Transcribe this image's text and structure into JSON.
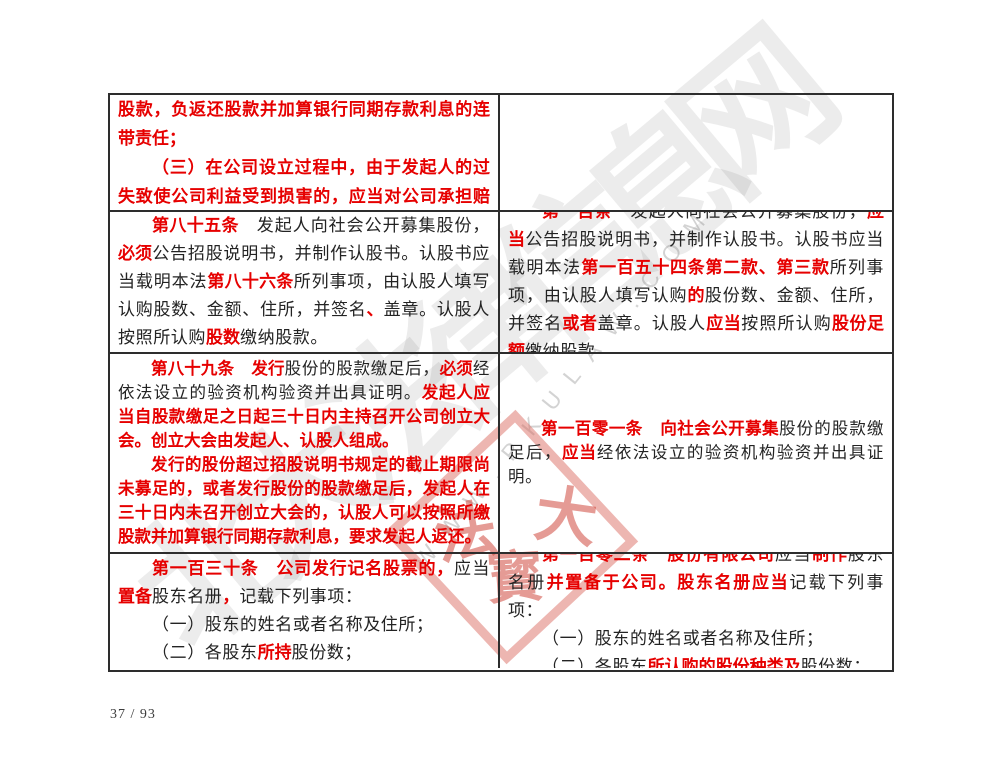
{
  "page": {
    "footer_page_number": "37 / 93"
  },
  "colors": {
    "red_emphasis": "#e60000",
    "body_text": "#232323",
    "table_border": "#2d2d2d",
    "stamp_red": "rgba(206,64,52,0.52)",
    "watermark_gray": "rgba(100,100,100,0.12)"
  },
  "watermark": {
    "calligraphy_text": "北大法律信息网",
    "url_letters": "WWW.PKULAW.COM",
    "stamp_chars": [
      "法",
      "寳",
      "大"
    ]
  },
  "table": {
    "rows": [
      {
        "left": {
          "paragraphs": [
            [
              {
                "s": "r",
                "t": "（二）公司不能成立时，对认股人已缴纳的股款，负返还股款并加算银行同期存款利息的连带责任；"
              }
            ],
            [
              {
                "s": "r",
                "t": "（三）在公司设立过程中，由于发起人的过失致使公司利益受到损害的，应当对公司承担赔偿责任。"
              }
            ]
          ]
        },
        "right": {
          "paragraphs": []
        }
      },
      {
        "left": {
          "paragraphs": [
            [
              {
                "s": "r",
                "t": "第八十五条"
              },
              {
                "s": "b",
                "t": "　发起人向社会公开募集股份，"
              },
              {
                "s": "r",
                "t": "必须"
              },
              {
                "s": "b",
                "t": "公告招股说明书，并制作认股书。认股书应当载明本法"
              },
              {
                "s": "r",
                "t": "第八十六条"
              },
              {
                "s": "b",
                "t": "所列事项，由认股人填写认购股数、金额、住所，并签名"
              },
              {
                "s": "r",
                "t": "、"
              },
              {
                "s": "b",
                "t": "盖章。认股人按照所认购"
              },
              {
                "s": "r",
                "t": "股数"
              },
              {
                "s": "b",
                "t": "缴纳股款。"
              }
            ]
          ]
        },
        "right": {
          "paragraphs": [
            [
              {
                "s": "r",
                "t": "第一百条"
              },
              {
                "s": "b",
                "t": "　发起人向社会公开募集股份，"
              },
              {
                "s": "r",
                "t": "应当"
              },
              {
                "s": "b",
                "t": "公告招股说明书，并制作认股书。认股书应当载明本法"
              },
              {
                "s": "r",
                "t": "第一百五十四条第二款、第三款"
              },
              {
                "s": "b",
                "t": "所列事项，由认股人填写认购"
              },
              {
                "s": "r",
                "t": "的"
              },
              {
                "s": "b",
                "t": "股份数、金额、住所，并签名"
              },
              {
                "s": "r",
                "t": "或者"
              },
              {
                "s": "b",
                "t": "盖章。认股人"
              },
              {
                "s": "r",
                "t": "应当"
              },
              {
                "s": "b",
                "t": "按照所认购"
              },
              {
                "s": "r",
                "t": "股份足额"
              },
              {
                "s": "b",
                "t": "缴纳股款。"
              }
            ]
          ]
        }
      },
      {
        "left": {
          "paragraphs": [
            [
              {
                "s": "r",
                "t": "第八十九条"
              },
              {
                "s": "b",
                "t": "　"
              },
              {
                "s": "r",
                "t": "发行"
              },
              {
                "s": "b",
                "t": "股份的股款缴足后，"
              },
              {
                "s": "r",
                "t": "必须"
              },
              {
                "s": "b",
                "t": "经依法设立的验资机构验资并出具证明。"
              },
              {
                "s": "r",
                "t": "发起人应当自股款缴足之日起三十日内主持召开公司创立大会。创立大会由发起人、认股人组成。"
              }
            ],
            [
              {
                "s": "r",
                "t": "发行的股份超过招股说明书规定的截止期限尚未募足的，或者发行股份的股款缴足后，发起人在三十日内未召开创立大会的，认股人可以按照所缴股款并加算银行同期存款利息，要求发起人返还。"
              }
            ]
          ]
        },
        "right": {
          "paragraphs": [
            [
              {
                "s": "r",
                "t": "第一百零一条"
              },
              {
                "s": "b",
                "t": "　"
              },
              {
                "s": "r",
                "t": "向社会公开募集"
              },
              {
                "s": "b",
                "t": "股份的股款缴足后，"
              },
              {
                "s": "r",
                "t": "应当"
              },
              {
                "s": "b",
                "t": "经依法设立的验资机构验资并出具证明。"
              }
            ]
          ]
        }
      },
      {
        "left": {
          "paragraphs": [
            [
              {
                "s": "r",
                "t": "第一百三十条　公司发行记名股票的，"
              },
              {
                "s": "b",
                "t": "应当"
              },
              {
                "s": "r",
                "t": "置备"
              },
              {
                "s": "b",
                "t": "股东名册"
              },
              {
                "s": "r",
                "t": "，"
              },
              {
                "s": "b",
                "t": "记载下列事项："
              }
            ],
            [
              {
                "s": "b",
                "t": "（一）股东的姓名或者名称及住所；"
              }
            ],
            [
              {
                "s": "b",
                "t": "（二）各股东"
              },
              {
                "s": "r",
                "t": "所持"
              },
              {
                "s": "b",
                "t": "股份数；"
              }
            ]
          ]
        },
        "right": {
          "paragraphs": [
            [
              {
                "s": "r",
                "t": "第一百零二条　股份有限公司"
              },
              {
                "s": "b",
                "t": "应当"
              },
              {
                "s": "r",
                "t": "制作"
              },
              {
                "s": "b",
                "t": "股东名册"
              },
              {
                "s": "r",
                "t": "并置备于公司。股东名册应当"
              },
              {
                "s": "b",
                "t": "记载下列事项："
              }
            ],
            [
              {
                "s": "b",
                "t": "（一）股东的姓名或者名称及住所；"
              }
            ],
            [
              {
                "s": "b",
                "t": "（二）各股东"
              },
              {
                "s": "r",
                "t": "所认购的股份种类及"
              },
              {
                "s": "b",
                "t": "股份数；"
              }
            ]
          ]
        }
      }
    ]
  }
}
